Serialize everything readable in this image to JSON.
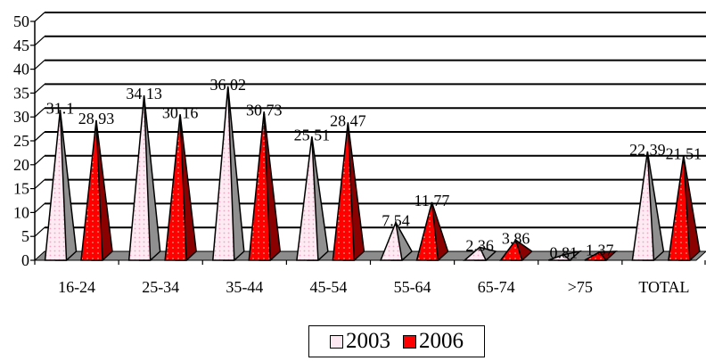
{
  "chart_data": {
    "type": "bar",
    "categories": [
      "16-24",
      "25-34",
      "35-44",
      "45-54",
      "55-64",
      "65-74",
      ">75",
      "TOTAL"
    ],
    "series": [
      {
        "name": "2003",
        "values": [
          31.1,
          34.13,
          36.02,
          25.51,
          7.54,
          2.36,
          0.81,
          22.39
        ],
        "labels": [
          "31.1",
          "34.13",
          "36.02",
          "25.51",
          "7.54",
          "2.36",
          "0.81",
          "22.39"
        ]
      },
      {
        "name": "2006",
        "values": [
          28.93,
          30.16,
          30.73,
          28.47,
          11.77,
          3.86,
          1.37,
          21.51
        ],
        "labels": [
          "28.93",
          "30.16",
          "30.73",
          "28.47",
          "11.77",
          "3.86",
          "1.37",
          "21.51"
        ]
      }
    ],
    "ylim": [
      0,
      50
    ],
    "yticks": [
      0,
      5,
      10,
      15,
      20,
      25,
      30,
      35,
      40,
      45,
      50
    ],
    "grid": true,
    "legend_position": "bottom-center",
    "colors": {
      "2003": "#fde7f0",
      "2006": "#ff0000",
      "grid": "#000000",
      "floor": "#8a8a8a"
    }
  }
}
